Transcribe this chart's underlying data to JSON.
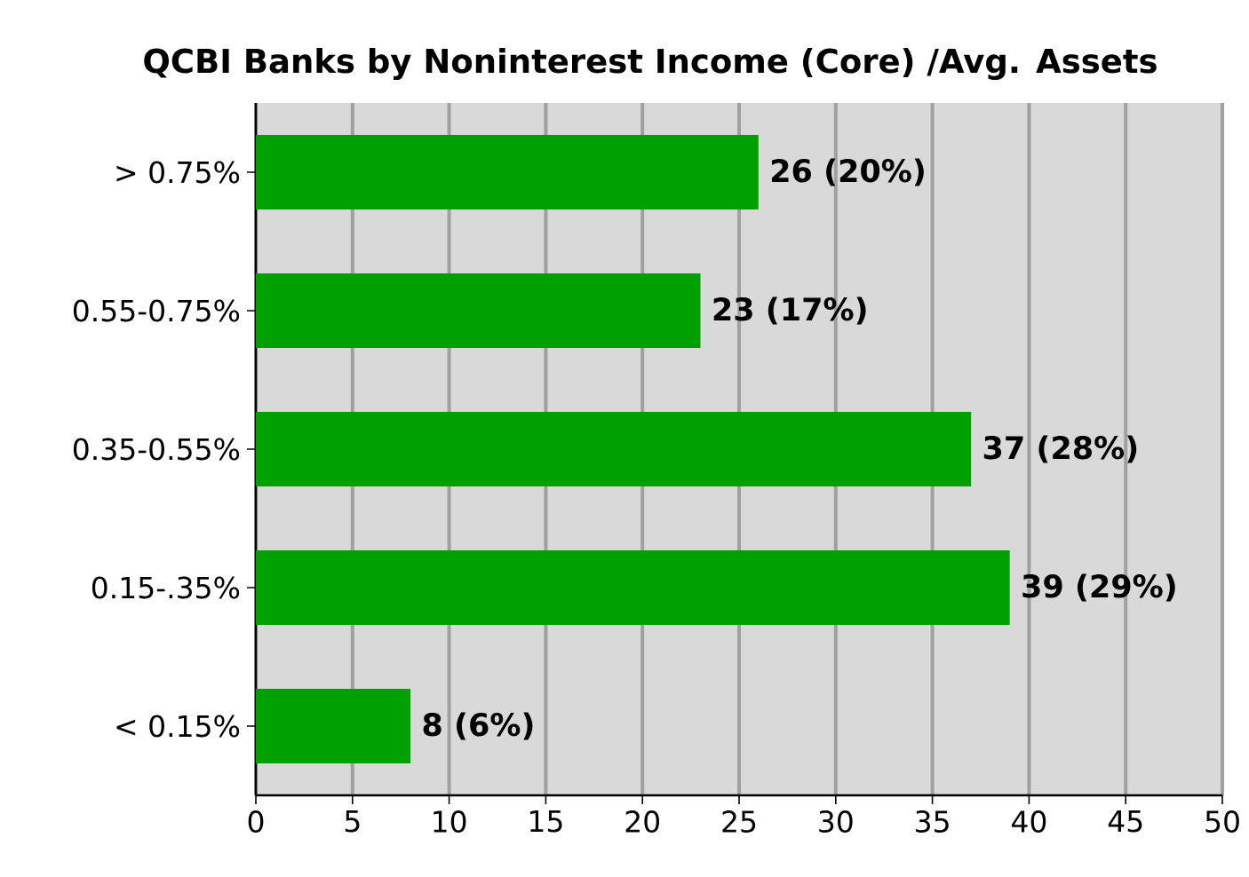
{
  "chart_data": {
    "type": "bar",
    "orientation": "horizontal",
    "title": "QCBI Banks by Noninterest Income (Core) /Avg. Assets",
    "categories": [
      "> 0.75%",
      "0.55-0.75%",
      "0.35-0.55%",
      "0.15-.35%",
      "< 0.15%"
    ],
    "values": [
      26,
      23,
      37,
      39,
      8
    ],
    "value_labels": [
      "26 (20%)",
      "23 (17%)",
      "37 (28%)",
      "39 (29%)",
      "8 (6%)"
    ],
    "color": "#00a000",
    "xlim": [
      0,
      50
    ],
    "xticks": [
      0,
      5,
      10,
      15,
      20,
      25,
      30,
      35,
      40,
      45,
      50
    ],
    "grid": "x"
  }
}
